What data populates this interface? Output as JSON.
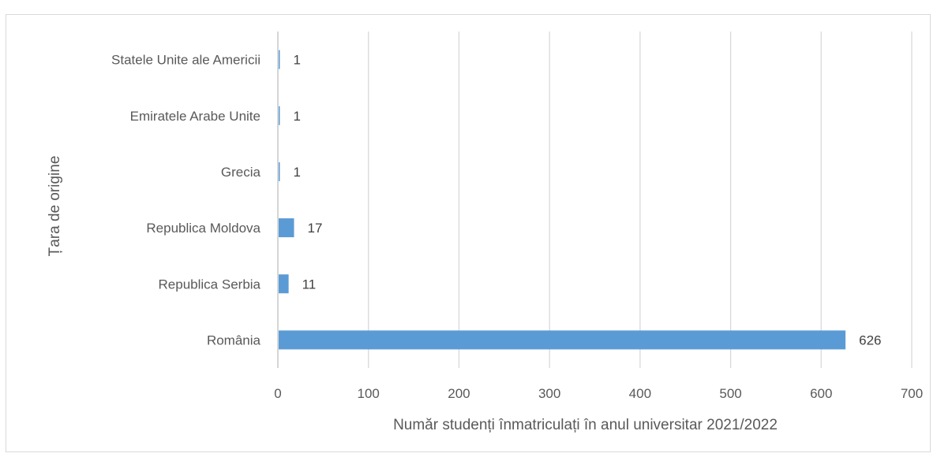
{
  "chart_data": {
    "type": "bar",
    "orientation": "horizontal",
    "title": "",
    "xlabel": "Număr studenți înmatriculați în anul universitar 2021/2022",
    "ylabel": "Țara de origine",
    "categories": [
      "România",
      "Republica Serbia",
      "Republica Moldova",
      "Grecia",
      "Emiratele Arabe Unite",
      "Statele Unite ale Americii"
    ],
    "values": [
      626,
      11,
      17,
      1,
      1,
      1
    ],
    "data_labels": [
      "626",
      "11",
      "17",
      "1",
      "1",
      "1"
    ],
    "xlim": [
      0,
      700
    ],
    "xticks": [
      "0",
      "100",
      "200",
      "300",
      "400",
      "500",
      "600",
      "700"
    ],
    "grid": true,
    "legend": "none",
    "colors": {
      "bar": "#5b9bd5",
      "grid": "#d9d9d9",
      "axis": "#bfbfbf",
      "text": "#595959"
    }
  }
}
